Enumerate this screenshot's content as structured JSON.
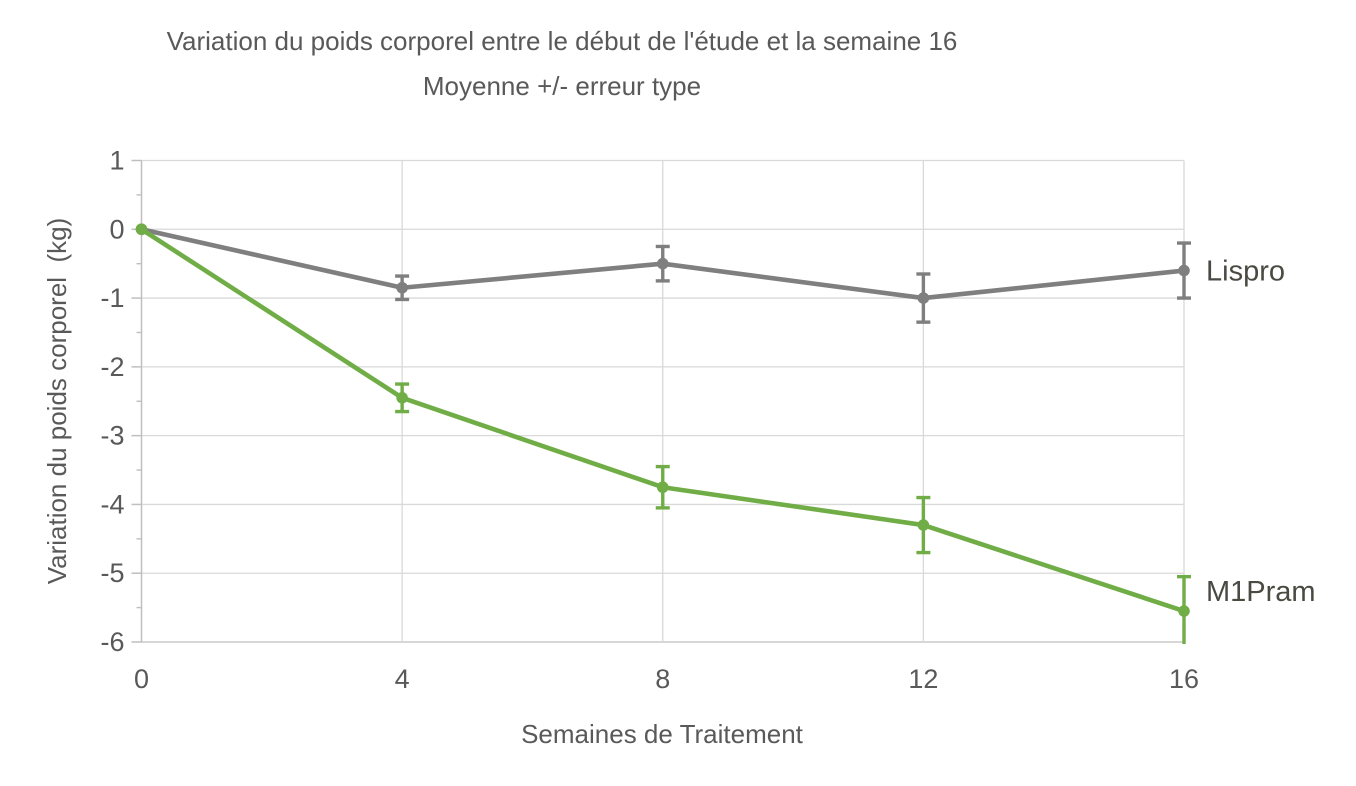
{
  "chart_data": {
    "type": "line",
    "title": "Variation du poids corporel entre le début de l'étude et la semaine 16",
    "subtitle": "Moyenne +/- erreur type",
    "xlabel": "Semaines de Traitement",
    "ylabel": "Variation du poids corporel  (kg)",
    "x": [
      0,
      4,
      8,
      12,
      16
    ],
    "x_ticks": [
      0,
      4,
      8,
      12,
      16
    ],
    "y_ticks": [
      1,
      0,
      -1,
      -2,
      -3,
      -4,
      -5,
      -6
    ],
    "y_minor_tick_step": 0.5,
    "xlim": [
      0,
      16
    ],
    "ylim": [
      -6,
      1
    ],
    "grid": true,
    "legend_position": "labels-at-line-end",
    "error_bar_meaning": "erreur type (standard error)",
    "series": [
      {
        "name": "Lispro",
        "color": "#7F7F7F",
        "values": [
          0,
          -0.85,
          -0.5,
          -1.0,
          -0.6
        ],
        "stderr": [
          0,
          0.17,
          0.25,
          0.35,
          0.4
        ]
      },
      {
        "name": "M1Pram",
        "color": "#70AD47",
        "values": [
          0,
          -2.45,
          -3.75,
          -4.3,
          -5.55
        ],
        "stderr": [
          0,
          0.2,
          0.3,
          0.4,
          0.5
        ]
      }
    ],
    "colors": {
      "background": "#FFFFFF",
      "grid": "#D9D9D9",
      "axis": "#BFBFBF",
      "tick_label": "#595959",
      "title": "#595959",
      "series_label": "#4A4A43"
    }
  }
}
